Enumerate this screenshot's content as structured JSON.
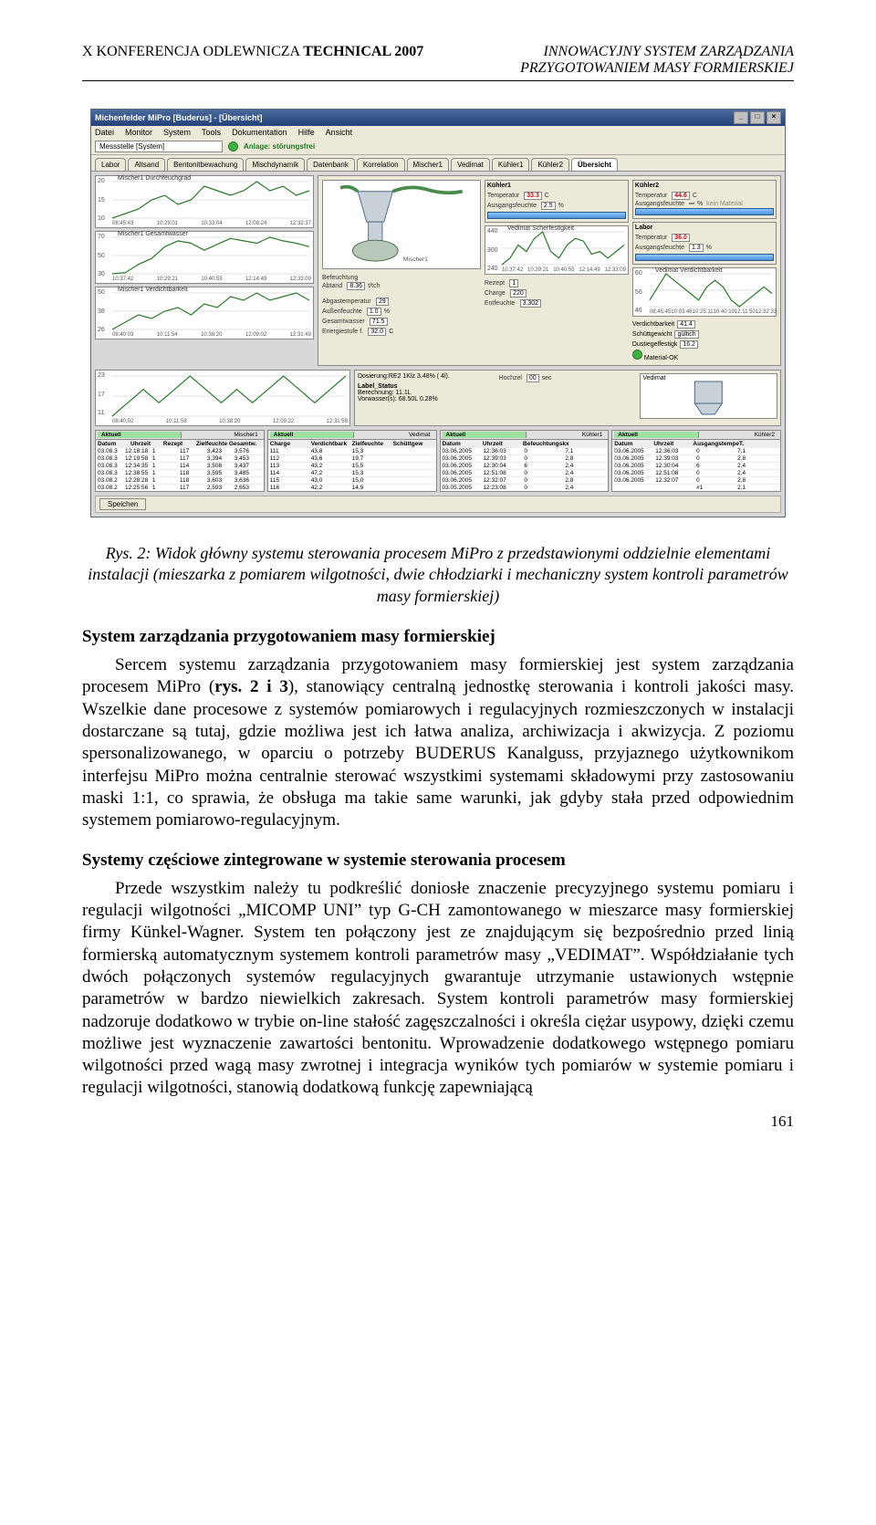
{
  "header": {
    "left": "X  KONFERENCJA ODLEWNICZA TECHNICAL 2007",
    "right_line1": "INNOWACYJNY SYSTEM ZARZĄDZANIA",
    "right_line2": "PRZYGOTOWANIEM MASY FORMIERSKIEJ"
  },
  "screenshot": {
    "titlebar": "Michenfelder MiPro [Buderus] - [Übersicht]",
    "menus": [
      "Datei",
      "Monitor",
      "System",
      "Tools",
      "Dokumentation",
      "Hilfe",
      "Ansicht"
    ],
    "toolbar": {
      "dropdown_label": "Messstelle [System]",
      "status_text": "Anlage: störungsfrei"
    },
    "tabs": [
      "Labor",
      "Altsand",
      "Bentonitbewachung",
      "Mischdynamik",
      "Datenbank",
      "Korrelation",
      "Mischer1",
      "Vedimat",
      "Kühler1",
      "Kühler2",
      "Übersicht"
    ],
    "active_tab": "Übersicht",
    "left_charts": [
      {
        "series_label": "Mischer1   Durchfeuchgrad",
        "y_ticks": [
          "20",
          "15",
          "10"
        ],
        "x_ticks": [
          "08:45:43",
          "10:29:01",
          "10:33:04",
          "12:08:24",
          "12:32:37"
        ],
        "color": "#2a7a2a",
        "points": [
          12,
          13,
          14,
          16,
          17,
          15,
          16,
          19,
          18,
          17,
          18,
          20,
          18,
          19,
          17,
          18
        ]
      },
      {
        "series_label": "Mischer1   Gesamtwasser",
        "y_ticks": [
          "70",
          "50",
          "30"
        ],
        "x_ticks": [
          "10:37:42",
          "10:29:21",
          "10:40:55",
          "12:14:49",
          "12:33:09"
        ],
        "color": "#2a7a2a",
        "points": [
          32,
          33,
          40,
          45,
          55,
          60,
          58,
          52,
          57,
          62,
          60,
          58,
          63,
          60,
          58,
          55
        ]
      },
      {
        "series_label": "Mischer1   Verdichtbarkeit",
        "y_ticks": [
          "50",
          "38",
          "26"
        ],
        "x_ticks": [
          "08:40:03",
          "10:11:54",
          "10:38:20",
          "12:09:02",
          "12:31:49"
        ],
        "color": "#2a7a2a",
        "points": [
          30,
          32,
          34,
          33,
          35,
          36,
          34,
          37,
          36,
          39,
          38,
          40,
          38,
          39,
          40,
          38
        ]
      }
    ],
    "diagram": {
      "sidebar_labels": {
        "befeuchtung": "Befeuchtung",
        "abtand": "Abtand",
        "t_val": "8.36",
        "t_unit": "t/tch"
      },
      "center_labels": {
        "Abgastemperatur": "Abgastemperatur",
        "Abgastemp_val": "29",
        "Außenfeuchte": "Außenfeuchte",
        "Aussen_val": "1.0",
        "Aussen_unit": "%",
        "Gesamtwasser": "Gesamtwasser",
        "Gesamt_val": "71.5",
        "Energiestufe": "Energiestufe f.",
        "Energie_val": "32.0",
        "Energie_unit": "C",
        "Regelst": "Regelst. Sattbeumte"
      },
      "dosing_line": "Dosierung:RE2 1Klz 3.48% ( 4l).",
      "label_status": "Label_Status",
      "berechnung": "Berechnung: 11.1L",
      "vorwasser": "Vorwasser(s): 68.50L  0.28%",
      "hochzel": "Hochzel",
      "hochzel_val": "00",
      "sec": "sec"
    },
    "col2": {
      "header": "Kühler1",
      "temp_label": "Temperatur",
      "temp_val": "33.3",
      "temp_unit": "C",
      "ausg": "Ausgangsfeuchte",
      "ausg_val": "2.5",
      "ausg_unit": "%",
      "chart": {
        "y_ticks": [
          "440",
          "300",
          "240"
        ],
        "x_ticks": [
          "10:37:42",
          "10:29:21",
          "10:40:55",
          "12:14:49",
          "12:33:09"
        ],
        "color": "#2a7a2a",
        "points": [
          290,
          295,
          305,
          300,
          310,
          315,
          300,
          295,
          305,
          310,
          308,
          298,
          300,
          295,
          300,
          305
        ],
        "series_label": "Vedimat   Scherfestigkeit"
      },
      "rezept": "Rezept",
      "rezept_val": "1",
      "charge": "Charge",
      "charge_val": "220",
      "entfeuchte": "Entfeuchte",
      "entfeuchte_val": "3.302"
    },
    "col3": {
      "header": "Kühler2",
      "temp_label": "Temperatur",
      "temp_val": "44.6",
      "temp_unit": "C",
      "ausg": "Ausgangsfeuchte",
      "ausg_val": "",
      "ausg_unit": "%",
      "mat": "kein Material",
      "chart": {
        "y_ticks": [
          "60",
          "56",
          "46"
        ],
        "x_ticks": [
          "08:45:45",
          "10:03:46",
          "10:25:11",
          "10:40:10",
          "12:11:50",
          "12:32:33"
        ],
        "color": "#2a7a2a",
        "points": [
          50,
          52,
          54,
          53,
          52,
          51,
          50,
          52,
          53,
          52,
          50,
          49,
          50,
          51,
          52,
          51
        ],
        "series_label": "Vedimat   Verdichtbarkeit"
      },
      "rows": [
        [
          "Verdichtbarkeit",
          "41.4",
          ""
        ],
        [
          "Schüttgewicht",
          "gültich",
          "gültich"
        ],
        [
          "Dustiegelfestigk",
          "16.2",
          "Ω/cm²"
        ],
        [
          "Rezept",
          "1",
          ""
        ],
        [
          "Charge",
          "200",
          ""
        ]
      ],
      "status_label": "Material-OK"
    },
    "col4": {
      "header": "Labor",
      "temp_label": "Temperatur",
      "temp_val": "36.0",
      "temp_unit": "",
      "ausg": "Ausgangsfeuchte",
      "ausg_val": "1.3",
      "ausg_unit": "%",
      "vedimat_box": "Vedimat"
    },
    "bottom_chart": {
      "y_ticks": [
        "23",
        "17",
        "11"
      ],
      "x_ticks": [
        "08:40:02",
        "10:11:58",
        "10:38:20",
        "12:09:22",
        "12:31:59"
      ],
      "color": "#2a7a2a",
      "series_label": "",
      "points": [
        13,
        14,
        15,
        14,
        15,
        16,
        15,
        14,
        15,
        14,
        15,
        16,
        15,
        14,
        15,
        16
      ]
    },
    "tables": [
      {
        "title_left": "Aktuell",
        "title_right": "Mischer1",
        "headers": [
          "Datum",
          "Uhrzeit",
          "Rezept",
          "Zielfeuchte",
          "Gesamtw."
        ],
        "rows": [
          [
            "03.08.3",
            "12:18:18",
            "1",
            "117",
            "3,423",
            "3,576"
          ],
          [
            "03.08.3",
            "12:19:58",
            "1",
            "117",
            "3,394",
            "3,453"
          ],
          [
            "03.08.3",
            "12:34:35",
            "1",
            "114",
            "3,508",
            "3,437"
          ],
          [
            "03.08.3",
            "12:38:55",
            "1",
            "118",
            "3,595",
            "3,485"
          ],
          [
            "03.08.2",
            "12:28:28",
            "1",
            "118",
            "3,603",
            "3,636"
          ],
          [
            "03.08.2",
            "12:25:56",
            "1",
            "117",
            "2,593",
            "2,653"
          ]
        ]
      },
      {
        "title_left": "Aktuell",
        "title_right": "Vedimat",
        "headers": [
          "Charge",
          "Verdichtbark",
          "Zielfeuchte",
          "Schüttgew"
        ],
        "rows": [
          [
            "111",
            "43,8",
            "15,3",
            ""
          ],
          [
            "112",
            "43,6",
            "19,7",
            ""
          ],
          [
            "113",
            "43,2",
            "15,5",
            ""
          ],
          [
            "114",
            "47,2",
            "15,3",
            ""
          ],
          [
            "115",
            "43,0",
            "15,0",
            ""
          ],
          [
            "116",
            "42,2",
            "14,9",
            ""
          ]
        ]
      },
      {
        "title_left": "Aktuell",
        "title_right": "Kühler1",
        "headers": [
          "Datum",
          "Uhrzeit",
          "Befeuchtungsk",
          "x"
        ],
        "rows": [
          [
            "03.06.2005",
            "12:36:03",
            "0",
            "7,1"
          ],
          [
            "03.06.2005",
            "12:39:03",
            "0",
            "2,8"
          ],
          [
            "03.06.2005",
            "12:30:04",
            "6",
            "2,4"
          ],
          [
            "03.06.2005",
            "12:51:08",
            "0",
            "2,4"
          ],
          [
            "03.06.2005",
            "12:32:07",
            "0",
            "2,8"
          ],
          [
            "03.05.2005",
            "12:23:08",
            "0",
            "2,4"
          ]
        ]
      },
      {
        "title_left": "Aktuell",
        "title_right": "Kühler2",
        "headers": [
          "Datum",
          "Uhrzeit",
          "Ausgangstempe",
          "T."
        ],
        "rows": [
          [
            "03.06.2005",
            "12:36:03",
            "0",
            "7,1"
          ],
          [
            "03.06.2005",
            "12:39:03",
            "0",
            "2,8"
          ],
          [
            "03.06.2005",
            "12:30:04",
            "6",
            "2,4"
          ],
          [
            "03.06.2005",
            "12:51:08",
            "0",
            "2,4"
          ],
          [
            "03.06.2005",
            "12:32:07",
            "0",
            "2,8"
          ],
          [
            "",
            "",
            "#1",
            "2,1"
          ]
        ]
      }
    ],
    "bottom_button": "Speichen"
  },
  "caption": "Rys. 2: Widok główny systemu sterowania procesem MiPro z przedstawionymi oddzielnie elementami instalacji (mieszarka z pomiarem wilgotności, dwie chłodziarki i mechaniczny system kontroli parametrów masy formierskiej)",
  "section1": {
    "heading": "System zarządzania przygotowaniem masy formierskiej",
    "body": "Sercem systemu zarządzania przygotowaniem masy formierskiej jest system zarządzania procesem MiPro (rys. 2 i 3), stanowiący centralną jednostkę sterowania i kontroli jakości masy. Wszelkie dane procesowe z systemów pomiarowych i regulacyjnych rozmieszczonych w instalacji dostarczane są tutaj, gdzie możliwa jest ich łatwa analiza, archiwizacja i akwizycja. Z poziomu spersonalizowanego, w oparciu o potrzeby BUDERUS Kanalguss, przyjaznego użytkownikom interfejsu MiPro można centralnie sterować wszystkimi systemami składowymi przy zastosowaniu maski 1:1, co sprawia, że obsługa ma takie same warunki, jak gdyby stała przed odpowiednim systemem pomiarowo-regulacyjnym."
  },
  "section2": {
    "heading": "Systemy częściowe zintegrowane w systemie sterowania procesem",
    "body": "Przede wszystkim należy tu podkreślić doniosłe znaczenie precyzyjnego systemu pomiaru i regulacji wilgotności „MICOMP UNI” typ G-CH zamontowanego w mieszarce masy formierskiej firmy Künkel-Wagner. System ten połączony jest ze znajdującym się bezpośrednio przed linią formierską automatycznym systemem kontroli parametrów masy „VEDIMAT”. Współdziałanie tych dwóch połączonych systemów regulacyjnych gwarantuje utrzymanie ustawionych wstępnie parametrów w bardzo niewielkich zakresach. System kontroli parametrów masy formierskiej nadzoruje dodatkowo w trybie on-line stałość zagęszczalności i określa ciężar usypowy, dzięki czemu możliwe jest wyznaczenie zawartości bentonitu. Wprowadzenie dodatkowego wstępnego pomiaru wilgotności przed wagą masy zwrotnej i integracja wyników tych pomiarów w systemie pomiaru i regulacji wilgotności, stanowią dodatkową funkcję zapewniającą"
  },
  "page_number": "161"
}
